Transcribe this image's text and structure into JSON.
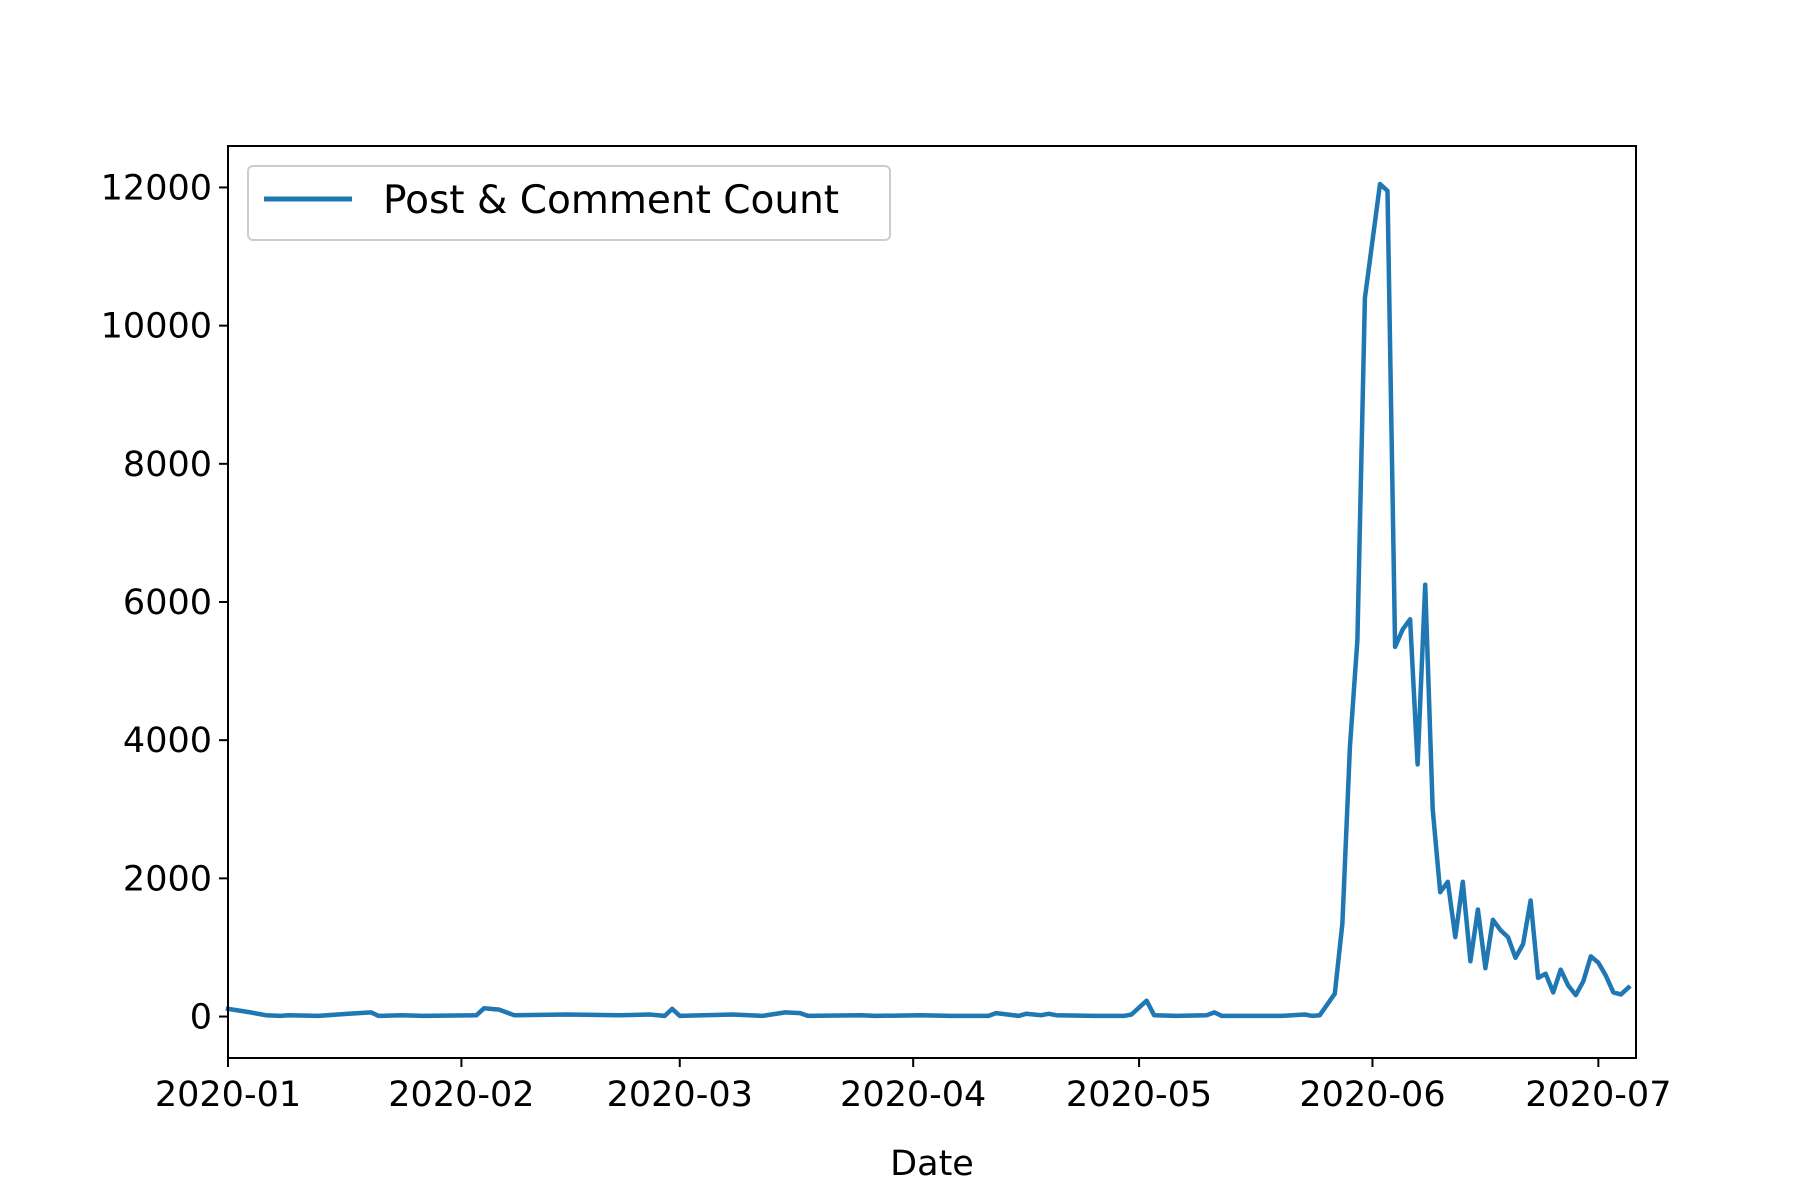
{
  "chart_data": {
    "type": "line",
    "title": "",
    "xlabel": "Date",
    "ylabel": "",
    "grid": false,
    "legend_position": "top-left",
    "line_color": "#1f77b4",
    "xlim": [
      "2020-01-01",
      "2020-07-06"
    ],
    "ylim": [
      -600,
      12600
    ],
    "x_ticks": [
      "2020-01",
      "2020-02",
      "2020-03",
      "2020-04",
      "2020-05",
      "2020-06",
      "2020-07"
    ],
    "y_ticks": [
      0,
      2000,
      4000,
      6000,
      8000,
      10000,
      12000
    ],
    "series": [
      {
        "name": "Post & Comment Count",
        "points": [
          [
            "2020-01-01",
            110
          ],
          [
            "2020-01-04",
            60
          ],
          [
            "2020-01-06",
            20
          ],
          [
            "2020-01-08",
            10
          ],
          [
            "2020-01-09",
            20
          ],
          [
            "2020-01-13",
            10
          ],
          [
            "2020-01-17",
            40
          ],
          [
            "2020-01-20",
            60
          ],
          [
            "2020-01-21",
            10
          ],
          [
            "2020-01-24",
            20
          ],
          [
            "2020-01-27",
            10
          ],
          [
            "2020-02-03",
            20
          ],
          [
            "2020-02-04",
            120
          ],
          [
            "2020-02-06",
            100
          ],
          [
            "2020-02-08",
            20
          ],
          [
            "2020-02-15",
            30
          ],
          [
            "2020-02-22",
            20
          ],
          [
            "2020-02-26",
            30
          ],
          [
            "2020-02-28",
            10
          ],
          [
            "2020-02-29",
            110
          ],
          [
            "2020-03-01",
            10
          ],
          [
            "2020-03-08",
            30
          ],
          [
            "2020-03-12",
            10
          ],
          [
            "2020-03-15",
            60
          ],
          [
            "2020-03-17",
            50
          ],
          [
            "2020-03-18",
            10
          ],
          [
            "2020-03-25",
            20
          ],
          [
            "2020-03-27",
            10
          ],
          [
            "2020-04-02",
            20
          ],
          [
            "2020-04-06",
            10
          ],
          [
            "2020-04-11",
            10
          ],
          [
            "2020-04-12",
            50
          ],
          [
            "2020-04-15",
            10
          ],
          [
            "2020-04-16",
            40
          ],
          [
            "2020-04-18",
            20
          ],
          [
            "2020-04-19",
            40
          ],
          [
            "2020-04-20",
            20
          ],
          [
            "2020-04-25",
            10
          ],
          [
            "2020-04-29",
            10
          ],
          [
            "2020-04-30",
            30
          ],
          [
            "2020-05-02",
            230
          ],
          [
            "2020-05-03",
            20
          ],
          [
            "2020-05-06",
            10
          ],
          [
            "2020-05-10",
            20
          ],
          [
            "2020-05-11",
            60
          ],
          [
            "2020-05-12",
            10
          ],
          [
            "2020-05-20",
            10
          ],
          [
            "2020-05-23",
            30
          ],
          [
            "2020-05-24",
            10
          ],
          [
            "2020-05-25",
            20
          ],
          [
            "2020-05-27",
            330
          ],
          [
            "2020-05-28",
            1350
          ],
          [
            "2020-05-29",
            3900
          ],
          [
            "2020-05-30",
            5450
          ],
          [
            "2020-05-31",
            10400
          ],
          [
            "2020-06-02",
            12050
          ],
          [
            "2020-06-03",
            11950
          ],
          [
            "2020-06-04",
            5350
          ],
          [
            "2020-06-05",
            5600
          ],
          [
            "2020-06-06",
            5750
          ],
          [
            "2020-06-07",
            3650
          ],
          [
            "2020-06-08",
            6250
          ],
          [
            "2020-06-09",
            3000
          ],
          [
            "2020-06-10",
            1800
          ],
          [
            "2020-06-11",
            1950
          ],
          [
            "2020-06-12",
            1150
          ],
          [
            "2020-06-13",
            1950
          ],
          [
            "2020-06-14",
            800
          ],
          [
            "2020-06-15",
            1550
          ],
          [
            "2020-06-16",
            700
          ],
          [
            "2020-06-17",
            1400
          ],
          [
            "2020-06-18",
            1250
          ],
          [
            "2020-06-19",
            1150
          ],
          [
            "2020-06-20",
            850
          ],
          [
            "2020-06-21",
            1050
          ],
          [
            "2020-06-22",
            1680
          ],
          [
            "2020-06-23",
            560
          ],
          [
            "2020-06-24",
            620
          ],
          [
            "2020-06-25",
            350
          ],
          [
            "2020-06-26",
            680
          ],
          [
            "2020-06-27",
            450
          ],
          [
            "2020-06-28",
            310
          ],
          [
            "2020-06-29",
            510
          ],
          [
            "2020-06-30",
            870
          ],
          [
            "2020-07-01",
            780
          ],
          [
            "2020-07-02",
            590
          ],
          [
            "2020-07-03",
            350
          ],
          [
            "2020-07-04",
            320
          ],
          [
            "2020-07-05",
            420
          ]
        ]
      }
    ]
  }
}
